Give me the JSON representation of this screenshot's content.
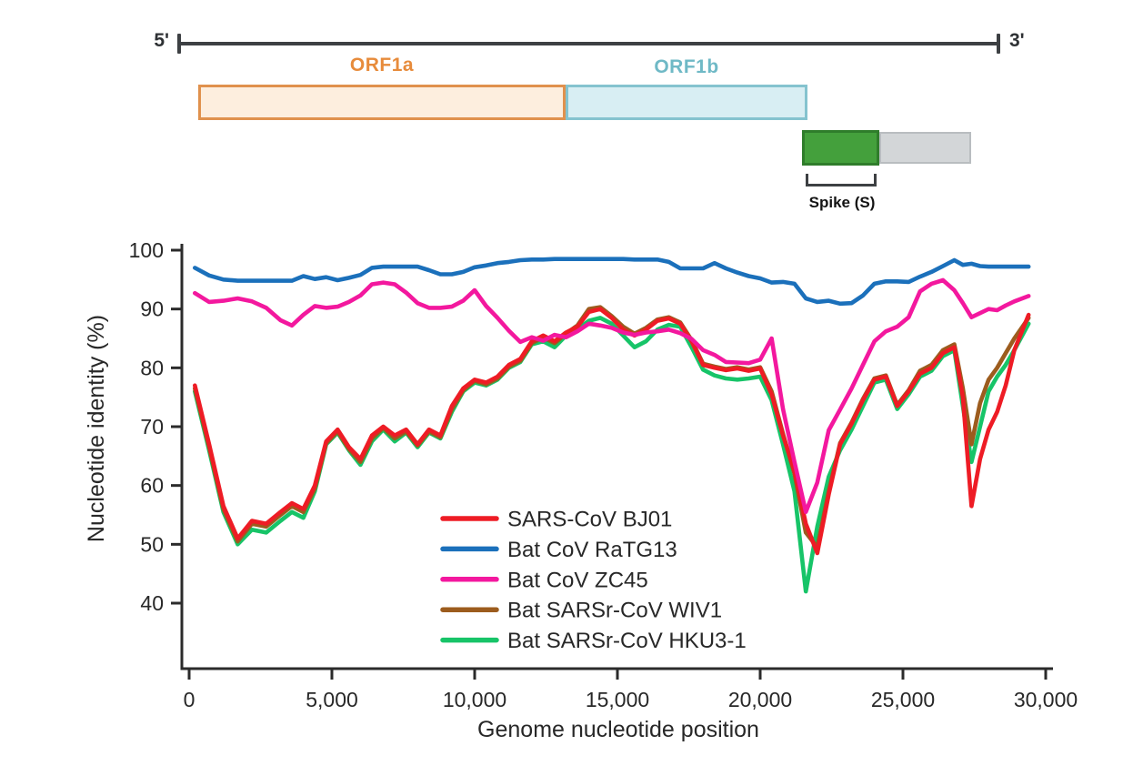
{
  "genome_diagram": {
    "five_prime_label": "5'",
    "three_prime_label": "3'",
    "orf1a_label": "ORF1a",
    "orf1b_label": "ORF1b",
    "spike_label": "Spike (S)",
    "colors": {
      "backbone": "#3d4043",
      "orf1a_fill": "#fdeede",
      "orf1a_border": "#e0914d",
      "orf1a_text": "#e78b3b",
      "orf1b_fill": "#d8eef3",
      "orf1b_border": "#85c3cf",
      "orf1b_text": "#6fb9c6",
      "spike_fill": "#44a03c",
      "spike_border": "#2f7d2b",
      "tail_fill": "#d3d6d8",
      "tail_border": "#b9bdc0",
      "bracket": "#3d4043",
      "spike_text": "#141414"
    }
  },
  "chart_data": {
    "type": "line",
    "title": "",
    "xlabel": "Genome nucleotide position",
    "ylabel": "Nucleotide identity (%)",
    "xlim": [
      0,
      30000
    ],
    "ylim": [
      40,
      100
    ],
    "grid": "off",
    "legend_position": "inside-bottom-center",
    "style": {
      "axis_color": "#2b2b2b",
      "tick_label_color": "#282828",
      "line_width": 4.6
    },
    "x_ticks": [
      {
        "value": 0,
        "label": "0"
      },
      {
        "value": 5000,
        "label": "5,000"
      },
      {
        "value": 10000,
        "label": "10,000"
      },
      {
        "value": 15000,
        "label": "15,000"
      },
      {
        "value": 20000,
        "label": "20,000"
      },
      {
        "value": 25000,
        "label": "25,000"
      },
      {
        "value": 30000,
        "label": "30,000"
      }
    ],
    "y_ticks": [
      {
        "value": 40,
        "label": "40"
      },
      {
        "value": 50,
        "label": "50"
      },
      {
        "value": 60,
        "label": "60"
      },
      {
        "value": 70,
        "label": "70"
      },
      {
        "value": 80,
        "label": "80"
      },
      {
        "value": 90,
        "label": "90"
      },
      {
        "value": 100,
        "label": "100"
      }
    ],
    "x": [
      200,
      700,
      1200,
      1700,
      2200,
      2700,
      3200,
      3600,
      4000,
      4400,
      4800,
      5200,
      5600,
      6000,
      6400,
      6800,
      7200,
      7600,
      8000,
      8400,
      8800,
      9200,
      9600,
      10000,
      10400,
      10800,
      11200,
      11600,
      12000,
      12400,
      12800,
      13200,
      13600,
      14000,
      14400,
      14800,
      15200,
      15600,
      16000,
      16400,
      16800,
      17200,
      17600,
      18000,
      18400,
      18800,
      19200,
      19600,
      20000,
      20400,
      20800,
      21200,
      21600,
      22000,
      22400,
      22800,
      23200,
      23600,
      24000,
      24400,
      24800,
      25200,
      25600,
      26000,
      26400,
      26800,
      27100,
      27400,
      27700,
      28000,
      28300,
      28600,
      28900,
      29400
    ],
    "series": [
      {
        "name": "SARS-CoV BJ01",
        "color": "#ee1c25",
        "values": [
          77,
          67,
          56.5,
          51,
          54,
          53.5,
          55.5,
          57,
          56,
          60,
          67.5,
          69.5,
          66.5,
          64.5,
          68.5,
          70,
          68.5,
          69.5,
          67,
          69.5,
          68.5,
          73.5,
          76.5,
          78,
          77.5,
          78.5,
          80.5,
          81.5,
          84.5,
          85.5,
          84.5,
          86,
          87,
          89.5,
          90,
          88.5,
          86.5,
          85.5,
          86.5,
          88,
          88.4,
          87.5,
          84.5,
          80.5,
          80,
          79.6,
          79.9,
          79.5,
          79.9,
          75.5,
          68.5,
          62.5,
          53.5,
          48.5,
          58.5,
          67,
          70.5,
          74.5,
          78,
          78.5,
          73.5,
          76,
          79,
          80,
          82.5,
          83.5,
          75,
          56.5,
          64.5,
          69.5,
          72.5,
          77,
          83,
          89
        ]
      },
      {
        "name": "Bat CoV RaTG13",
        "color": "#1b70bb",
        "values": [
          97,
          95.7,
          95,
          94.8,
          94.8,
          94.8,
          94.8,
          94.8,
          95.6,
          95.1,
          95.4,
          94.9,
          95.3,
          95.8,
          97,
          97.2,
          97.2,
          97.2,
          97.2,
          96.6,
          95.9,
          95.9,
          96.3,
          97.1,
          97.4,
          97.8,
          98,
          98.3,
          98.4,
          98.4,
          98.5,
          98.5,
          98.5,
          98.5,
          98.5,
          98.5,
          98.5,
          98.4,
          98.4,
          98.4,
          98,
          96.9,
          96.9,
          96.9,
          97.8,
          96.9,
          96.2,
          95.6,
          95.2,
          94.5,
          94.6,
          94.3,
          91.8,
          91.2,
          91.4,
          90.9,
          91,
          92.3,
          94.3,
          94.7,
          94.7,
          94.6,
          95.5,
          96.3,
          97.3,
          98.3,
          97.5,
          97.7,
          97.3,
          97.2,
          97.2,
          97.2,
          97.2,
          97.2
        ]
      },
      {
        "name": "Bat CoV ZC45",
        "color": "#f3189e",
        "values": [
          92.7,
          91.2,
          91.4,
          91.8,
          91.3,
          90.2,
          88.1,
          87.2,
          89,
          90.5,
          90.2,
          90.4,
          91.2,
          92.3,
          94.2,
          94.5,
          94.2,
          92.8,
          91,
          90.2,
          90.2,
          90.4,
          91.4,
          93.2,
          90.5,
          88.5,
          86.3,
          84.4,
          85.2,
          84.6,
          85.6,
          85.2,
          86.2,
          87.5,
          87.2,
          86.8,
          86,
          85.6,
          86,
          86.2,
          86.5,
          85.9,
          84.9,
          83,
          82.2,
          81,
          80.9,
          80.8,
          81.4,
          85,
          73,
          64,
          55.5,
          60.5,
          69.4,
          72.9,
          76.5,
          80.5,
          84.5,
          86.2,
          87,
          88.6,
          93,
          94.3,
          94.9,
          93.2,
          91,
          88.6,
          89.3,
          90,
          89.8,
          90.6,
          91.3,
          92.2
        ]
      },
      {
        "name": "Bat SARSr-CoV WIV1",
        "color": "#9c5c1e",
        "values": [
          76.5,
          66.5,
          56,
          50.5,
          53.5,
          53,
          55,
          56.5,
          55.5,
          59.5,
          67.2,
          69.2,
          66.2,
          64,
          68,
          69.8,
          68,
          69.2,
          66.8,
          69.2,
          68.2,
          73,
          76.2,
          77.8,
          77.2,
          78.2,
          80.2,
          81.2,
          84.2,
          85.2,
          84.2,
          85.8,
          87.2,
          90,
          90.3,
          88.8,
          87,
          85.8,
          86.8,
          88.2,
          88.6,
          87.7,
          84.7,
          80.7,
          80.2,
          79.8,
          80.1,
          79.7,
          80.1,
          76,
          68.8,
          62,
          52,
          49.5,
          59,
          67.2,
          70.7,
          74.7,
          78.2,
          78.7,
          73.7,
          76.2,
          79.5,
          80.5,
          83,
          84,
          76.5,
          67,
          74,
          78,
          80,
          82.5,
          85,
          88.5
        ]
      },
      {
        "name": "Bat SARSr-CoV HKU3-1",
        "color": "#17c468",
        "values": [
          76,
          66,
          55.5,
          50,
          52.5,
          52,
          54,
          55.5,
          54.5,
          59,
          67,
          69,
          66,
          63.5,
          67.5,
          69.5,
          67.5,
          69,
          66.5,
          69,
          68,
          72.5,
          76,
          77.5,
          77,
          78,
          80,
          81,
          84,
          84.5,
          83.5,
          85.5,
          86.5,
          88,
          88.5,
          87.5,
          85.5,
          83.5,
          84.5,
          86.5,
          87.3,
          87,
          83.5,
          79.7,
          78.7,
          78.2,
          78,
          78.2,
          78.5,
          74.5,
          67,
          59,
          42,
          53,
          61.5,
          66,
          69.5,
          73.5,
          77.5,
          78,
          73,
          75.5,
          78.5,
          79.5,
          82,
          83,
          73.5,
          64,
          70,
          76,
          78.5,
          80.5,
          83,
          87.5
        ]
      }
    ]
  }
}
